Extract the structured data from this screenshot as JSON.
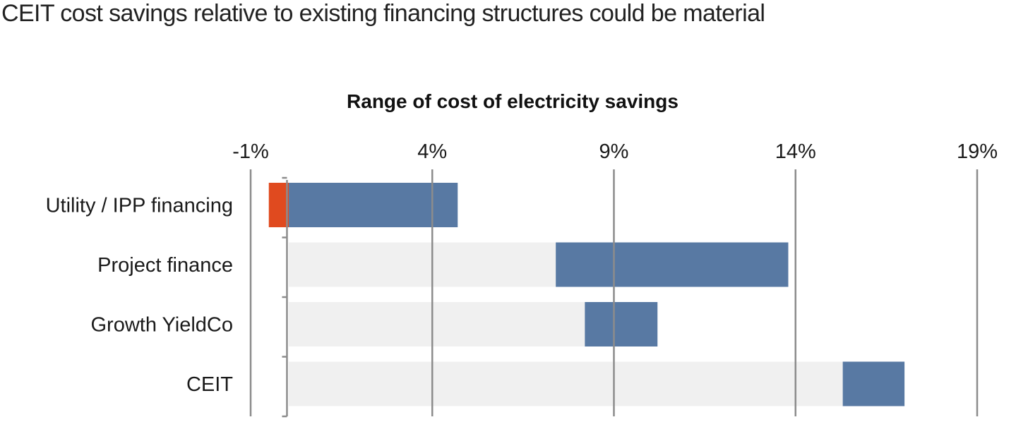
{
  "headline": "CEIT cost savings relative to existing financing structures could be material",
  "chart_data": {
    "type": "bar",
    "title": "Range of cost of electricity savings",
    "xlabel": "",
    "ylabel": "",
    "xlim": [
      -1,
      19
    ],
    "x_ticks": [
      "-1%",
      "4%",
      "9%",
      "14%",
      "19%"
    ],
    "x_tick_values": [
      -1,
      4,
      9,
      14,
      19
    ],
    "categories": [
      "Utility / IPP financing",
      "Project finance",
      "Growth YieldCo",
      "CEIT"
    ],
    "series": [
      {
        "values": [
          [
            -0.5,
            0.05
          ],
          null,
          null,
          null
        ]
      },
      {
        "values": [
          [
            0.05,
            0.05
          ],
          [
            0.05,
            7.4
          ],
          [
            0.05,
            8.2
          ],
          [
            0.05,
            15.3
          ]
        ]
      },
      {
        "values": [
          [
            0.05,
            4.7
          ],
          [
            7.4,
            13.8
          ],
          [
            8.2,
            10.2
          ],
          [
            15.3,
            17.0
          ]
        ]
      }
    ],
    "colors": {
      "negative": "#e04a1f",
      "savings_range": "#5879a3",
      "baseline": "#f0f0f0",
      "gridline": "#8c8c8c"
    },
    "grid": true
  }
}
